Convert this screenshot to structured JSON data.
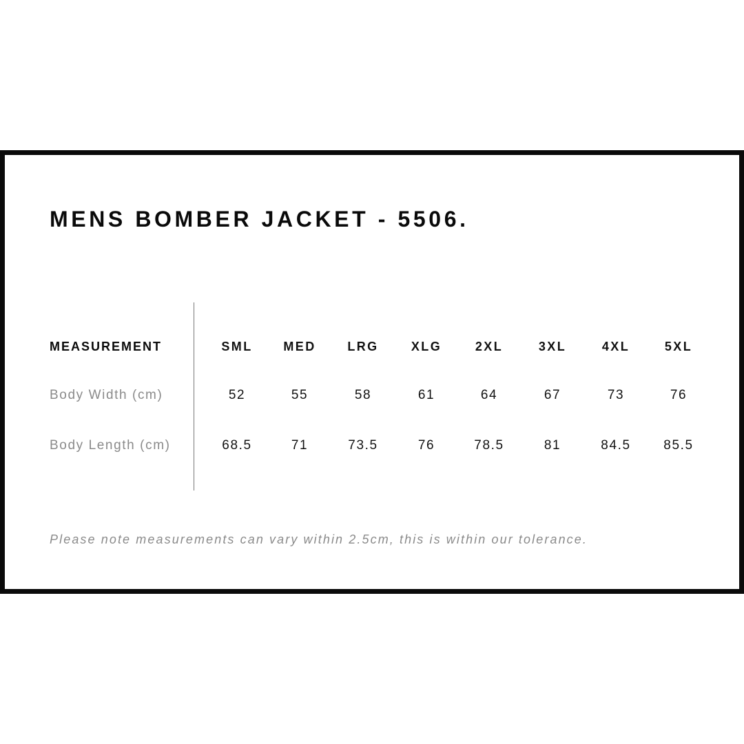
{
  "title": "MENS BOMBER JACKET - 5506.",
  "table": {
    "header_label": "MEASUREMENT",
    "sizes": [
      "SML",
      "MED",
      "LRG",
      "XLG",
      "2XL",
      "3XL",
      "4XL",
      "5XL"
    ],
    "rows": [
      {
        "label": "Body Width (cm)",
        "values": [
          "52",
          "55",
          "58",
          "61",
          "64",
          "67",
          "73",
          "76"
        ]
      },
      {
        "label": "Body Length (cm)",
        "values": [
          "68.5",
          "71",
          "73.5",
          "76",
          "78.5",
          "81",
          "84.5",
          "85.5"
        ]
      }
    ]
  },
  "note": "Please note measurements can vary within 2.5cm, this is within our tolerance."
}
